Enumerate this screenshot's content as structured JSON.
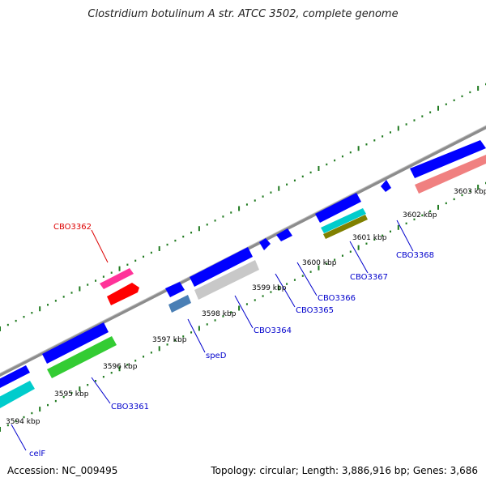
{
  "title": "Clostridium botulinum A str. ATCC 3502, complete genome",
  "footer": {
    "accession": "Accession: NC_009495",
    "summary": "Topology: circular; Length: 3,886,916 bp; Genes: 3,686"
  },
  "colors": {
    "backbone": "#8c8c8c",
    "tick_green": "#1f7a1f",
    "label_blue": "#0000cc",
    "label_red": "#dd0000"
  },
  "scale_labels": [
    "3594 kbp",
    "3595 kbp",
    "3596 kbp",
    "3597 kbp",
    "3598 kbp",
    "3599 kbp",
    "3600 kbp",
    "3601 kbp",
    "3602 kbp",
    "3603 kbp"
  ],
  "gene_labels": [
    {
      "text": "CBO3362",
      "color": "#dd0000"
    },
    {
      "text": "CBO3361",
      "color": "#0000cc"
    },
    {
      "text": "celF",
      "color": "#0000cc"
    },
    {
      "text": "speD",
      "color": "#0000cc"
    },
    {
      "text": "CBO3364",
      "color": "#0000cc"
    },
    {
      "text": "CBO3365",
      "color": "#0000cc"
    },
    {
      "text": "CBO3366",
      "color": "#0000cc"
    },
    {
      "text": "CBO3367",
      "color": "#0000cc"
    },
    {
      "text": "CBO3368",
      "color": "#0000cc"
    }
  ]
}
